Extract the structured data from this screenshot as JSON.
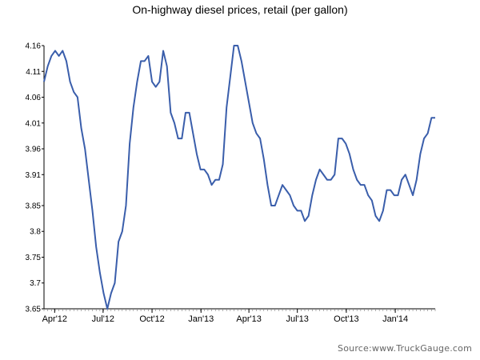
{
  "chart_data": {
    "type": "line",
    "title": "On-highway diesel prices, retail (per gallon)",
    "xlabel": "",
    "ylabel": "",
    "x_start": "2012-03-12",
    "x_step_days": 7,
    "x_end": "2014-02-24",
    "x_tick_labels": [
      {
        "label": "Apr'12",
        "date": "2012-04-01"
      },
      {
        "label": "Jul'12",
        "date": "2012-07-01"
      },
      {
        "label": "Oct'12",
        "date": "2012-10-01"
      },
      {
        "label": "Jan'13",
        "date": "2013-01-01"
      },
      {
        "label": "Apr'13",
        "date": "2013-04-01"
      },
      {
        "label": "Jul'13",
        "date": "2013-07-01"
      },
      {
        "label": "Oct'13",
        "date": "2013-10-01"
      },
      {
        "label": "Jan'14",
        "date": "2014-01-01"
      }
    ],
    "y_ticks": [
      "4.16",
      "4.11",
      "4.06",
      "4.01",
      "3.96",
      "3.91",
      "3.85",
      "3.8",
      "3.75",
      "3.7",
      "3.65"
    ],
    "ylim": [
      3.65,
      4.16
    ],
    "grid": false,
    "series": [
      {
        "color": "#3a5eab",
        "values": [
          4.09,
          4.12,
          4.14,
          4.15,
          4.14,
          4.15,
          4.13,
          4.09,
          4.07,
          4.06,
          4.0,
          3.96,
          3.9,
          3.84,
          3.77,
          3.72,
          3.68,
          3.65,
          3.68,
          3.7,
          3.78,
          3.8,
          3.85,
          3.97,
          4.04,
          4.09,
          4.13,
          4.13,
          4.14,
          4.09,
          4.08,
          4.09,
          4.15,
          4.12,
          4.03,
          4.01,
          3.98,
          3.98,
          4.03,
          4.03,
          3.99,
          3.95,
          3.92,
          3.92,
          3.91,
          3.89,
          3.9,
          3.9,
          3.93,
          4.04,
          4.1,
          4.16,
          4.16,
          4.13,
          4.09,
          4.05,
          4.01,
          3.99,
          3.98,
          3.94,
          3.89,
          3.85,
          3.85,
          3.87,
          3.89,
          3.88,
          3.87,
          3.85,
          3.84,
          3.84,
          3.82,
          3.83,
          3.87,
          3.9,
          3.92,
          3.91,
          3.9,
          3.9,
          3.91,
          3.98,
          3.98,
          3.97,
          3.95,
          3.92,
          3.9,
          3.89,
          3.89,
          3.87,
          3.86,
          3.83,
          3.82,
          3.84,
          3.88,
          3.88,
          3.87,
          3.87,
          3.9,
          3.91,
          3.89,
          3.87,
          3.9,
          3.95,
          3.98,
          3.99,
          4.02,
          4.02
        ]
      }
    ]
  },
  "source_note": "Source:www.TruckGauge.com"
}
